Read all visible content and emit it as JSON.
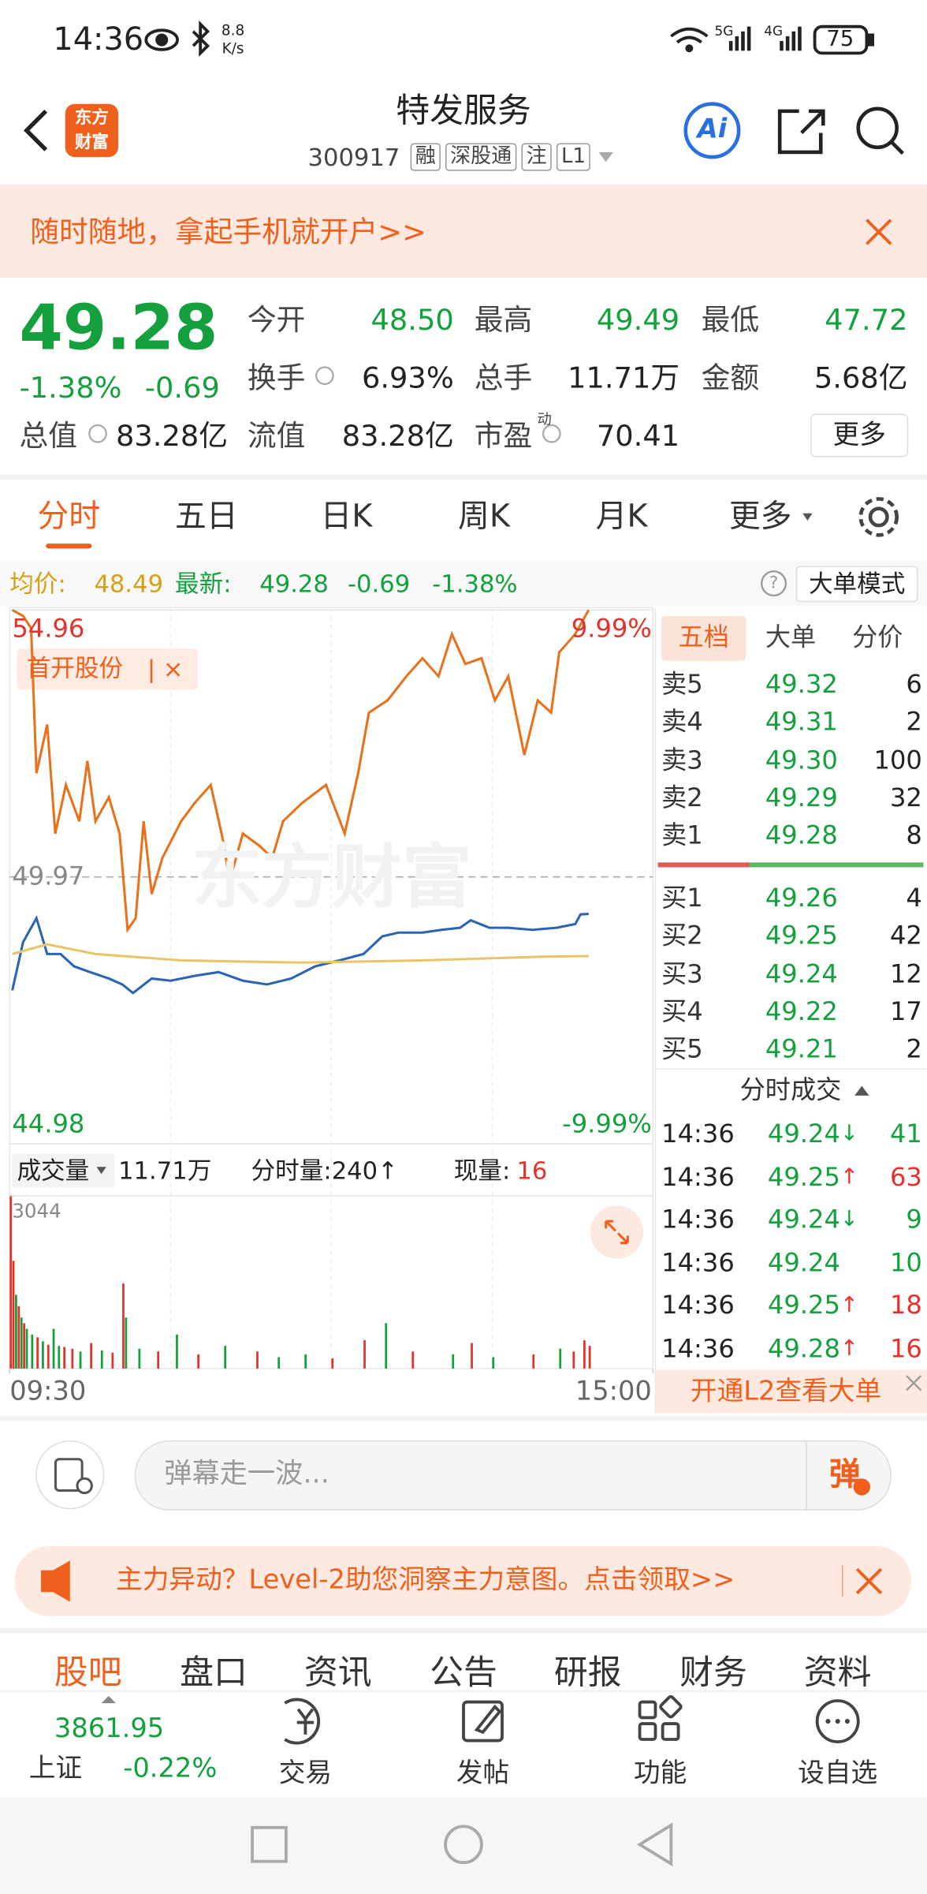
{
  "status_bar": {
    "time": "14:36",
    "net_speed": "8.8",
    "net_unit": "K/s",
    "signal_1": "5G",
    "signal_2": "4G",
    "battery": "75"
  },
  "header": {
    "logo": [
      "东方",
      "财富"
    ],
    "title": "特发服务",
    "code": "300917",
    "tags": [
      "融",
      "深股通",
      "注",
      "L1"
    ],
    "ai_button": "Ai"
  },
  "banner": {
    "text": "随时随地，拿起手机就开户>>"
  },
  "quote": {
    "price": "49.28",
    "change_pct": "-1.38%",
    "change": "-0.69",
    "total_value": {
      "label": "总值",
      "value": "83.28亿"
    },
    "stats": [
      {
        "label": "今开",
        "value": "48.50"
      },
      {
        "label": "最高",
        "value": "49.49"
      },
      {
        "label": "最低",
        "value": "47.72"
      },
      {
        "label": "换手",
        "value": "6.93%"
      },
      {
        "label": "总手",
        "value": "11.71万"
      },
      {
        "label": "金额",
        "value": "5.68亿"
      },
      {
        "label": "流值",
        "value": "83.28亿"
      },
      {
        "label": "市盈",
        "value": "70.41"
      }
    ],
    "pe_badge": "动",
    "more": "更多"
  },
  "tabs": [
    "分时",
    "五日",
    "日K",
    "周K",
    "月K",
    "更多"
  ],
  "info_line": {
    "avg_label": "均价:",
    "avg": "48.49",
    "latest_label": "最新:",
    "latest": "49.28",
    "change": "-0.69",
    "change_pct": "-1.38%",
    "help": "?",
    "big_order_mode": "大单模式"
  },
  "watermark": "东方财富",
  "chart_data": [
    {
      "type": "line",
      "xlim": [
        0,
        240
      ],
      "xticks": [
        {
          "value": 0,
          "label": "09:30"
        },
        {
          "value": 240,
          "label": "15:00"
        }
      ],
      "xgrid": [
        60,
        120,
        180
      ],
      "ylim": [
        44.98,
        54.96
      ],
      "yticks": [
        54.96,
        49.97,
        44.98
      ],
      "y2lim": [
        -9.99,
        9.99
      ],
      "y2ticks": [
        {
          "value": 9.99,
          "label": "9.99%"
        },
        {
          "value": -9.99,
          "label": "-9.99%"
        }
      ],
      "series": [
        {
          "name": "首开股份",
          "color": "#e8721c",
          "x": [
            1,
            5,
            8,
            10,
            14,
            17,
            21,
            26,
            29,
            32,
            37,
            41,
            44,
            47,
            50,
            53,
            57,
            64,
            69,
            75,
            80,
            82,
            87,
            93,
            98,
            102,
            109,
            118,
            125,
            130,
            134,
            141,
            148,
            154,
            160,
            165,
            170,
            176,
            181,
            186,
            192,
            197,
            202,
            205,
            211,
            216
          ],
          "values": [
            54.96,
            54.85,
            54.62,
            51.91,
            52.82,
            50.78,
            51.69,
            51.01,
            52.14,
            51.01,
            51.46,
            50.78,
            48.98,
            49.2,
            51.01,
            49.65,
            50.33,
            51.01,
            51.35,
            51.69,
            50.56,
            49.88,
            50.78,
            50.56,
            50.33,
            51.01,
            51.35,
            51.69,
            50.78,
            51.91,
            53.04,
            53.27,
            53.72,
            54.06,
            53.72,
            54.51,
            53.95,
            54.06,
            53.27,
            53.72,
            52.25,
            53.27,
            53.04,
            54.17,
            54.51,
            54.96
          ]
        },
        {
          "color": "#2b63b5",
          "x": [
            1,
            5,
            10,
            14,
            19,
            24,
            30,
            37,
            42,
            46,
            53,
            60,
            69,
            78,
            87,
            96,
            105,
            114,
            123,
            132,
            139,
            145,
            154,
            161,
            168,
            172,
            179,
            186,
            195,
            204,
            211,
            213,
            216
          ],
          "values": [
            47.85,
            48.75,
            49.2,
            48.53,
            48.53,
            48.3,
            48.19,
            48.07,
            47.96,
            47.8,
            48.07,
            48.03,
            48.12,
            48.19,
            48.03,
            47.96,
            48.07,
            48.3,
            48.41,
            48.53,
            48.86,
            48.93,
            48.93,
            48.98,
            49.02,
            49.16,
            49.02,
            49.02,
            48.98,
            49.02,
            49.09,
            49.27,
            49.28
          ]
        },
        {
          "color": "#e9c46a",
          "x": [
            1,
            14,
            32,
            64,
            109,
            154,
            199,
            216
          ],
          "values": [
            48.53,
            48.71,
            48.53,
            48.41,
            48.37,
            48.41,
            48.48,
            48.49
          ]
        }
      ]
    },
    {
      "type": "bar",
      "title": "成交量",
      "total": "11.71万",
      "tick_volume": "分时量:240↑",
      "current_label": "现量:",
      "current": "16",
      "xlim": [
        0,
        240
      ],
      "ylim": [
        0,
        3044
      ],
      "yticks": [
        3044
      ],
      "x": [
        0,
        1,
        2,
        3,
        4,
        5,
        6,
        8,
        10,
        12,
        14,
        16,
        18,
        20,
        23,
        26,
        30,
        34,
        38,
        42,
        43,
        48,
        55,
        62,
        70,
        80,
        92,
        100,
        110,
        120,
        132,
        140,
        150,
        165,
        172,
        180,
        195,
        205,
        210,
        214,
        216
      ],
      "values": [
        3044,
        1900,
        1300,
        1100,
        900,
        800,
        700,
        600,
        550,
        480,
        420,
        700,
        400,
        380,
        350,
        300,
        450,
        320,
        280,
        1500,
        900,
        350,
        300,
        600,
        250,
        400,
        300,
        200,
        250,
        180,
        500,
        800,
        300,
        250,
        450,
        200,
        250,
        350,
        300,
        500,
        400
      ],
      "colors": [
        "#e5322b",
        "#e5322b",
        "#14a03c",
        "#e5322b",
        "#14a03c",
        "#e5322b",
        "#14a03c",
        "#14a03c",
        "#e5322b",
        "#14a03c",
        "#e5322b",
        "#14a03c",
        "#14a03c",
        "#e5322b",
        "#e5322b",
        "#14a03c",
        "#e5322b",
        "#14a03c",
        "#e5322b",
        "#e5322b",
        "#14a03c",
        "#14a03c",
        "#e5322b",
        "#14a03c",
        "#e5322b",
        "#14a03c",
        "#e5322b",
        "#14a03c",
        "#14a03c",
        "#e5322b",
        "#e5322b",
        "#14a03c",
        "#e5322b",
        "#14a03c",
        "#e5322b",
        "#14a03c",
        "#e5322b",
        "#14a03c",
        "#e5322b",
        "#e5322b",
        "#e5322b"
      ]
    }
  ],
  "order_book": {
    "tabs": [
      "五档",
      "大单",
      "分价"
    ],
    "sell": [
      {
        "label": "卖5",
        "price": "49.32",
        "volume": "6"
      },
      {
        "label": "卖4",
        "price": "49.31",
        "volume": "2"
      },
      {
        "label": "卖3",
        "price": "49.30",
        "volume": "100"
      },
      {
        "label": "卖2",
        "price": "49.29",
        "volume": "32"
      },
      {
        "label": "卖1",
        "price": "49.28",
        "volume": "8"
      }
    ],
    "buy": [
      {
        "label": "买1",
        "price": "49.26",
        "volume": "4"
      },
      {
        "label": "买2",
        "price": "49.25",
        "volume": "42"
      },
      {
        "label": "买3",
        "price": "49.24",
        "volume": "12"
      },
      {
        "label": "买4",
        "price": "49.22",
        "volume": "17"
      },
      {
        "label": "买5",
        "price": "49.21",
        "volume": "2"
      }
    ]
  },
  "trades": {
    "title": "分时成交",
    "rows": [
      {
        "time": "14:36",
        "price": "49.24",
        "arrow": "↓",
        "volume": "41",
        "color": "#14a03c"
      },
      {
        "time": "14:36",
        "price": "49.25",
        "arrow": "↑",
        "volume": "63",
        "color": "#e5322b"
      },
      {
        "time": "14:36",
        "price": "49.24",
        "arrow": "↓",
        "volume": "9",
        "color": "#14a03c"
      },
      {
        "time": "14:36",
        "price": "49.24",
        "volume": "10",
        "color": "#14a03c"
      },
      {
        "time": "14:36",
        "price": "49.25",
        "arrow": "↑",
        "volume": "18",
        "color": "#e5322b"
      },
      {
        "time": "14:36",
        "price": "49.28",
        "arrow": "↑",
        "volume": "16",
        "color": "#e5322b"
      }
    ]
  },
  "l2_button": "开通L2查看大单",
  "comment": {
    "placeholder": "弹幕走一波...",
    "send": "弹"
  },
  "promo": {
    "text": "主力异动？Level-2助您洞察主力意图。点击领取>>"
  },
  "bottom_tabs": [
    "股吧",
    "盘口",
    "资讯",
    "公告",
    "研报",
    "财务",
    "资料"
  ],
  "nav": {
    "index": {
      "value": "3861.95",
      "name": "上证",
      "change": "-0.22%"
    },
    "items": [
      "交易",
      "发帖",
      "功能",
      "设自选"
    ]
  }
}
